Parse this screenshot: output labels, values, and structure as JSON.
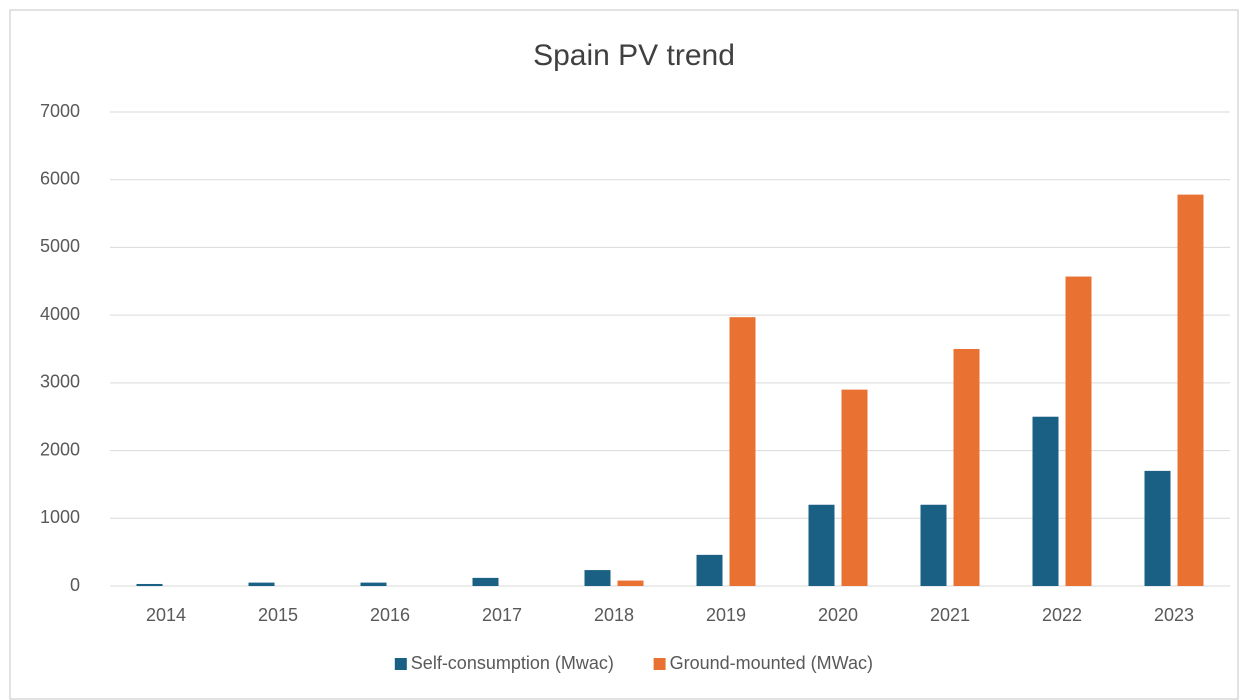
{
  "chart_data": {
    "type": "bar",
    "title": "Spain PV trend",
    "categories": [
      "2014",
      "2015",
      "2016",
      "2017",
      "2018",
      "2019",
      "2020",
      "2021",
      "2022",
      "2023"
    ],
    "series": [
      {
        "name": "Self-consumption (Mwac)",
        "color": "#1a5f84",
        "values": [
          30,
          50,
          50,
          120,
          235,
          460,
          1200,
          1200,
          2500,
          1700
        ]
      },
      {
        "name": "Ground-mounted (MWac)",
        "color": "#e97132",
        "values": [
          0,
          0,
          0,
          0,
          80,
          3970,
          2900,
          3500,
          4570,
          5780
        ]
      }
    ],
    "ylim": [
      0,
      7000
    ],
    "yticks": [
      0,
      1000,
      2000,
      3000,
      4000,
      5000,
      6000,
      7000
    ],
    "grid": true,
    "legend": "bottom"
  }
}
